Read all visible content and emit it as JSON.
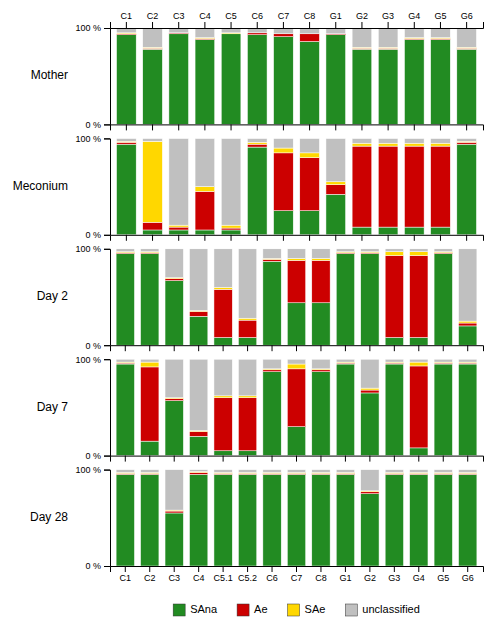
{
  "chart_data": [
    {
      "type": "bar",
      "stacked": true,
      "y_label": "Mother",
      "categories": [
        "C1",
        "C2",
        "C3",
        "C4",
        "C5",
        "C6",
        "C7",
        "C8",
        "G1",
        "G2",
        "G3",
        "G4",
        "G5",
        "G6"
      ],
      "series": [
        {
          "color": "#228B22",
          "values": [
            93,
            78,
            94,
            88,
            94,
            93,
            91,
            86,
            93,
            78,
            78,
            88,
            88,
            78
          ]
        },
        {
          "color": "#CC0000",
          "values": [
            1,
            1,
            1,
            1,
            0,
            2,
            3,
            8,
            1,
            1,
            1,
            1,
            1,
            1
          ]
        },
        {
          "color": "#FFD700",
          "values": [
            1,
            1,
            0,
            1,
            1,
            0,
            0,
            0,
            0,
            1,
            1,
            1,
            1,
            1
          ]
        },
        {
          "color": "#c0c0c0",
          "values": [
            5,
            20,
            5,
            10,
            5,
            5,
            6,
            6,
            6,
            20,
            20,
            10,
            10,
            20
          ]
        }
      ],
      "ylim": [
        0,
        100
      ],
      "yticks": [
        {
          "value": 0,
          "label": "0 %"
        },
        {
          "value": 100,
          "label": "100 %"
        }
      ]
    },
    {
      "type": "bar",
      "stacked": true,
      "y_label": "Meconium",
      "categories": [
        null,
        null,
        null,
        null,
        null,
        null,
        null,
        null,
        null,
        null,
        null,
        null,
        null,
        null
      ],
      "series": [
        {
          "color": "#228B22",
          "values": [
            94,
            5,
            5,
            5,
            5,
            91,
            25,
            25,
            42,
            8,
            8,
            8,
            8,
            94
          ]
        },
        {
          "color": "#CC0000",
          "values": [
            2,
            8,
            3,
            40,
            2,
            3,
            60,
            55,
            10,
            84,
            84,
            84,
            84,
            2
          ]
        },
        {
          "color": "#FFD700",
          "values": [
            1,
            84,
            2,
            5,
            3,
            2,
            5,
            5,
            3,
            3,
            3,
            3,
            3,
            1
          ]
        },
        {
          "color": "#c0c0c0",
          "values": [
            3,
            3,
            90,
            50,
            90,
            4,
            10,
            15,
            45,
            5,
            5,
            5,
            5,
            3
          ]
        }
      ],
      "ylim": [
        0,
        100
      ],
      "yticks": [
        {
          "value": 0,
          "label": "0 %"
        },
        {
          "value": 100,
          "label": "100 %"
        }
      ]
    },
    {
      "type": "bar",
      "stacked": true,
      "y_label": "Day 2",
      "categories": [
        null,
        null,
        null,
        null,
        null,
        null,
        null,
        null,
        null,
        null,
        null,
        null,
        null,
        null,
        null
      ],
      "series": [
        {
          "color": "#228B22",
          "values": [
            95,
            95,
            67,
            30,
            8,
            8,
            87,
            44,
            44,
            95,
            95,
            8,
            8,
            95,
            20
          ]
        },
        {
          "color": "#CC0000",
          "values": [
            1,
            1,
            2,
            5,
            50,
            18,
            2,
            44,
            44,
            1,
            1,
            85,
            85,
            1,
            3
          ]
        },
        {
          "color": "#FFD700",
          "values": [
            1,
            1,
            1,
            1,
            2,
            2,
            1,
            2,
            2,
            1,
            1,
            4,
            4,
            1,
            2
          ]
        },
        {
          "color": "#c0c0c0",
          "values": [
            3,
            3,
            30,
            64,
            40,
            72,
            10,
            10,
            10,
            3,
            3,
            3,
            3,
            3,
            75
          ]
        }
      ],
      "ylim": [
        0,
        100
      ],
      "yticks": [
        {
          "value": 0,
          "label": "0 %"
        },
        {
          "value": 100,
          "label": "100 %"
        }
      ]
    },
    {
      "type": "bar",
      "stacked": true,
      "y_label": "Day 7",
      "categories": [
        null,
        null,
        null,
        null,
        null,
        null,
        null,
        null,
        null,
        null,
        null,
        null,
        null,
        null,
        null
      ],
      "series": [
        {
          "color": "#228B22",
          "values": [
            95,
            15,
            57,
            20,
            5,
            5,
            87,
            30,
            87,
            95,
            65,
            95,
            8,
            95,
            95
          ]
        },
        {
          "color": "#CC0000",
          "values": [
            1,
            77,
            2,
            5,
            55,
            55,
            2,
            60,
            2,
            1,
            3,
            1,
            85,
            1,
            1
          ]
        },
        {
          "color": "#FFD700",
          "values": [
            1,
            5,
            1,
            1,
            2,
            2,
            1,
            5,
            1,
            1,
            2,
            1,
            4,
            1,
            1
          ]
        },
        {
          "color": "#c0c0c0",
          "values": [
            3,
            3,
            40,
            74,
            38,
            38,
            10,
            5,
            10,
            3,
            30,
            3,
            3,
            3,
            3
          ]
        }
      ],
      "ylim": [
        0,
        100
      ],
      "yticks": [
        {
          "value": 0,
          "label": "0 %"
        },
        {
          "value": 100,
          "label": "100 %"
        }
      ]
    },
    {
      "type": "bar",
      "stacked": true,
      "y_label": "Day 28",
      "legend": "bottom",
      "categories": [
        "C1",
        "C2",
        "C3",
        "C4",
        "C5.1",
        "C5.2",
        "C6",
        "C7",
        "C8",
        "G1",
        "G2",
        "G3",
        "G4",
        "G5",
        "G6"
      ],
      "series": [
        {
          "name": "SAna",
          "color": "#228B22",
          "values": [
            95,
            95,
            55,
            95,
            95,
            95,
            95,
            95,
            95,
            95,
            75,
            95,
            95,
            95,
            95
          ]
        },
        {
          "name": "Ae",
          "color": "#CC0000",
          "values": [
            1,
            1,
            2,
            2,
            1,
            1,
            1,
            1,
            1,
            1,
            2,
            1,
            1,
            1,
            1
          ]
        },
        {
          "name": "SAe",
          "color": "#FFD700",
          "values": [
            1,
            1,
            1,
            1,
            1,
            1,
            1,
            1,
            1,
            1,
            1,
            1,
            1,
            1,
            1
          ]
        },
        {
          "name": "unclassified",
          "color": "#c0c0c0",
          "values": [
            3,
            3,
            42,
            2,
            3,
            3,
            3,
            3,
            3,
            3,
            22,
            3,
            3,
            3,
            3
          ]
        }
      ],
      "ylim": [
        0,
        100
      ],
      "yticks": [
        {
          "value": 0,
          "label": "0 %"
        },
        {
          "value": 100,
          "label": "100 %"
        }
      ]
    }
  ]
}
